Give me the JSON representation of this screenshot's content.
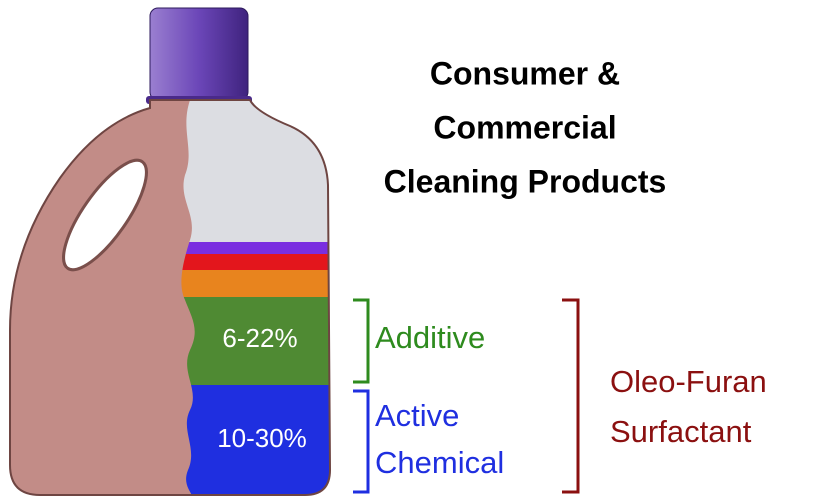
{
  "title": {
    "lines": [
      "Consumer &",
      "Commercial",
      "Cleaning Products"
    ]
  },
  "bottle": {
    "additive_range": "6-22%",
    "active_range": "10-30%"
  },
  "labels": {
    "additive": "Additive",
    "active": [
      "Active",
      "Chemical"
    ],
    "surfactant": [
      "Oleo-Furan",
      "Surfactant"
    ]
  }
}
